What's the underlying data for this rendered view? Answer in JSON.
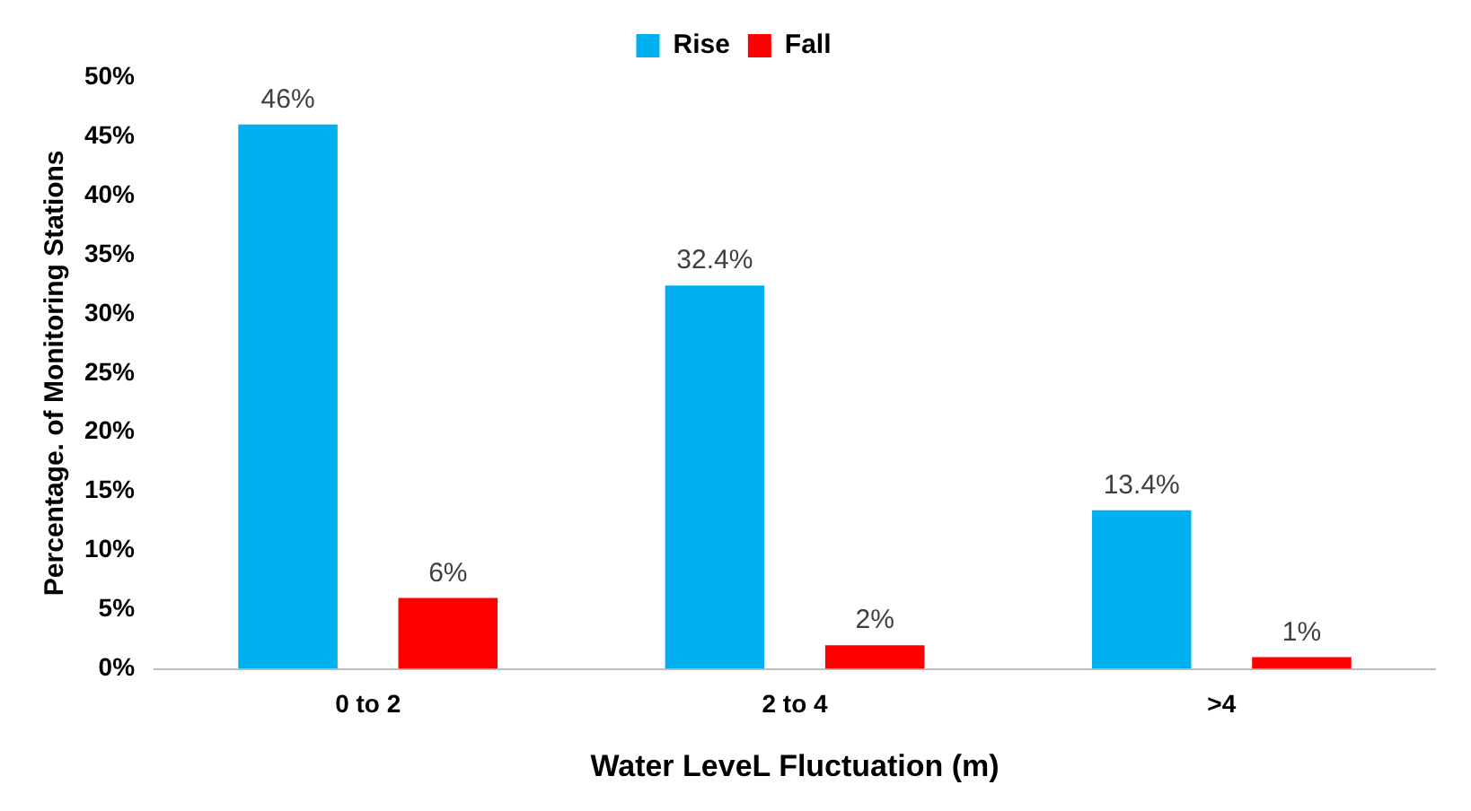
{
  "chart_data": {
    "type": "bar",
    "xlabel": "Water LeveL Fluctuation (m)",
    "ylabel": "Percentage. of Monitoring Stations",
    "categories": [
      "0 to 2",
      "2 to 4",
      ">4"
    ],
    "series": [
      {
        "name": "Rise",
        "color": "#00b0f0",
        "values": [
          46,
          32.4,
          13.4
        ],
        "value_labels": [
          "46%",
          "32.4%",
          "13.4%"
        ]
      },
      {
        "name": "Fall",
        "color": "#ff0000",
        "values": [
          6,
          2,
          1
        ],
        "value_labels": [
          "6%",
          "2%",
          "1%"
        ]
      }
    ],
    "ylim": [
      0,
      50
    ],
    "yticks": [
      {
        "value": 0,
        "label": "0%"
      },
      {
        "value": 5,
        "label": "5%"
      },
      {
        "value": 10,
        "label": "10%"
      },
      {
        "value": 15,
        "label": "15%"
      },
      {
        "value": 20,
        "label": "20%"
      },
      {
        "value": 25,
        "label": "25%"
      },
      {
        "value": 30,
        "label": "30%"
      },
      {
        "value": 35,
        "label": "35%"
      },
      {
        "value": 40,
        "label": "40%"
      },
      {
        "value": 45,
        "label": "45%"
      },
      {
        "value": 50,
        "label": "50%"
      }
    ],
    "grid": false,
    "legend": "top"
  }
}
